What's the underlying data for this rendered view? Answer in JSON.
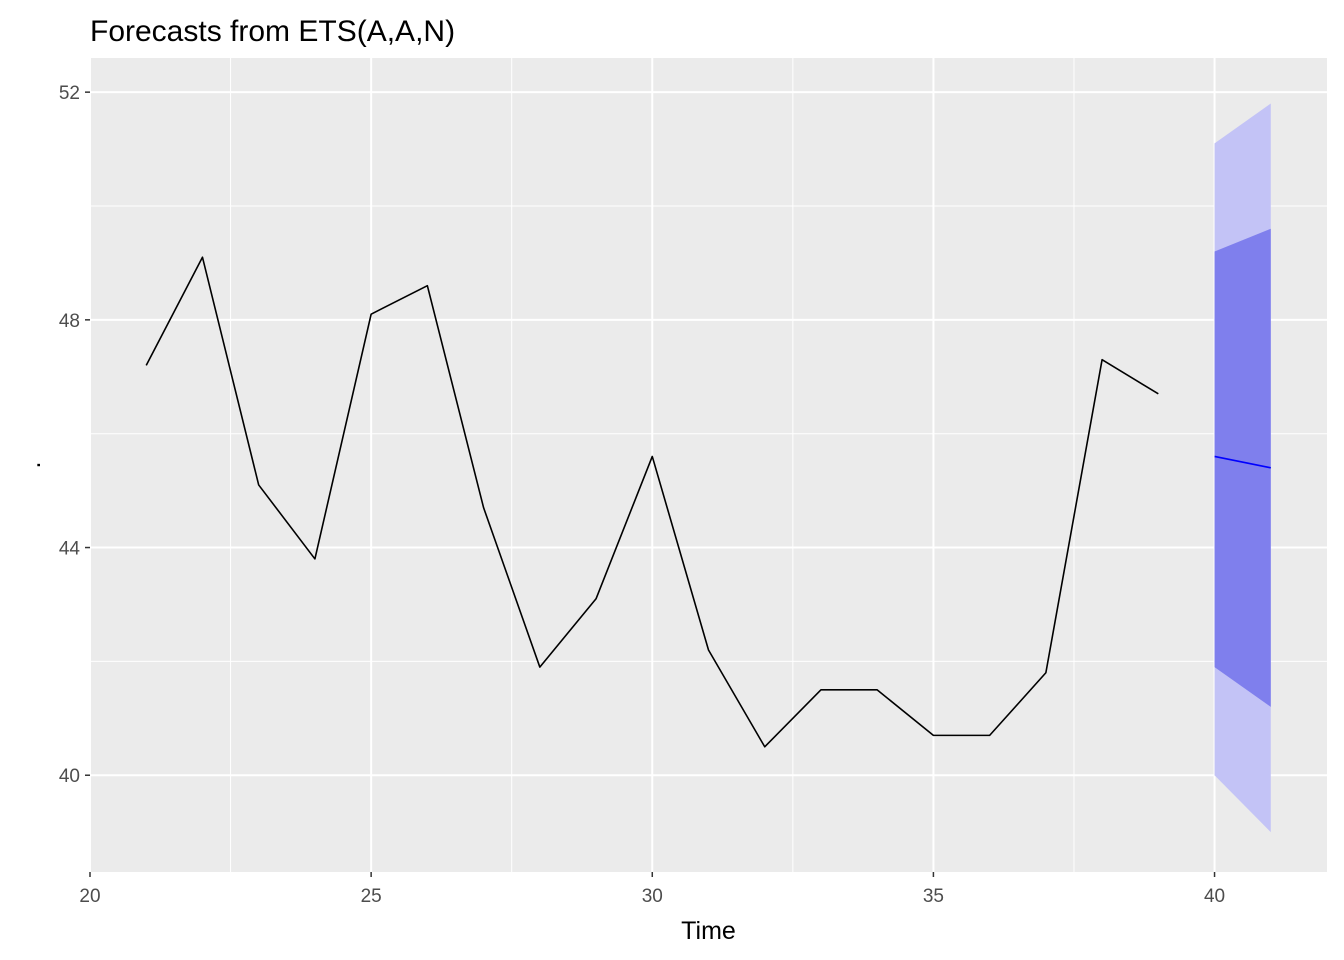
{
  "chart_data": {
    "type": "line",
    "title": "Forecasts from ETS(A,A,N)",
    "xlabel": "Time",
    "ylabel": ".",
    "xlim": [
      20,
      42
    ],
    "ylim": [
      38.3,
      52.6
    ],
    "x_ticks": [
      20,
      25,
      30,
      35,
      40
    ],
    "x_tick_labels": [
      "20",
      "25",
      "30",
      "35",
      "40"
    ],
    "y_ticks": [
      40,
      44,
      48,
      52
    ],
    "y_tick_labels": [
      "40",
      "44",
      "48",
      "52"
    ],
    "grid": true,
    "background": "#ebebeb",
    "series": [
      {
        "role": "observed",
        "color": "#000000",
        "x": [
          21,
          22,
          23,
          24,
          25,
          26,
          27,
          28,
          29,
          30,
          31,
          32,
          33,
          34,
          35,
          36,
          37,
          38,
          39
        ],
        "y": [
          47.2,
          49.1,
          45.1,
          43.8,
          48.1,
          48.6,
          44.7,
          41.9,
          43.1,
          45.6,
          42.2,
          40.5,
          41.5,
          41.5,
          40.7,
          40.7,
          41.8,
          47.3,
          46.7
        ]
      },
      {
        "role": "forecast",
        "color": "#0000ff",
        "x": [
          40,
          41
        ],
        "y": [
          45.6,
          45.4
        ]
      }
    ],
    "intervals": [
      {
        "level": 95,
        "color": "#c3c3f6",
        "x": [
          40,
          41
        ],
        "lower": [
          40.0,
          39.0
        ],
        "upper": [
          51.1,
          51.8
        ]
      },
      {
        "level": 80,
        "color": "#7f7fed",
        "x": [
          40,
          41
        ],
        "lower": [
          41.9,
          41.2
        ],
        "upper": [
          49.2,
          49.6
        ]
      }
    ]
  }
}
